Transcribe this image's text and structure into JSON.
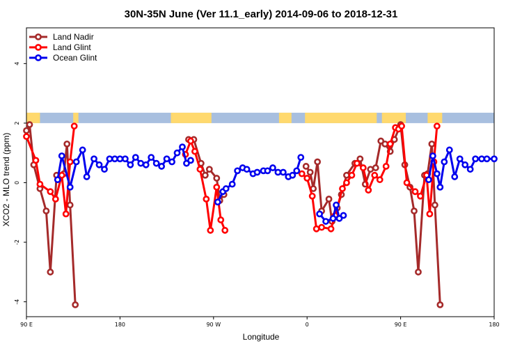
{
  "chart_data": {
    "type": "line",
    "title": "30N-35N June (Ver 11.1_early)   2014-09-06 to 2018-12-31",
    "xlabel": "Longitude",
    "ylabel": "XCO2 - MLO trend (ppm)",
    "x_ticks": [
      {
        "value": 90,
        "label": "90 E"
      },
      {
        "value": 180,
        "label": "180"
      },
      {
        "value": 270,
        "label": "90 W"
      },
      {
        "value": 360,
        "label": "0"
      },
      {
        "value": 450,
        "label": "90 E"
      },
      {
        "value": 540,
        "label": "180"
      }
    ],
    "y_ticks": [
      {
        "value": -4,
        "label": "-4"
      },
      {
        "value": -2,
        "label": "-2"
      },
      {
        "value": 0,
        "label": "0"
      },
      {
        "value": 2,
        "label": "2"
      },
      {
        "value": 4,
        "label": "4"
      }
    ],
    "xlim": [
      90,
      540
    ],
    "ylim": [
      -4.5,
      5.2
    ],
    "legend_position": "top-left",
    "land_mask_band": {
      "y_range": [
        2.0,
        2.35
      ],
      "land_color": "#ffd96e",
      "ocean_color": "#a8bfdf"
    },
    "series": [
      {
        "name": "Land Nadir",
        "color": "#a52a2a",
        "segments": [
          [
            [
              90,
              1.75
            ],
            [
              93,
              1.95
            ],
            [
              97,
              0.6
            ],
            [
              103,
              -0.2
            ],
            [
              109,
              -0.95
            ],
            [
              113,
              -3.0
            ],
            [
              119,
              0.25
            ],
            [
              126,
              0.3
            ],
            [
              129,
              1.3
            ],
            [
              132,
              -0.75
            ],
            [
              137,
              -4.1
            ]
          ],
          [
            [
              246,
              1.45
            ],
            [
              251,
              1.45
            ],
            [
              258,
              0.65
            ],
            [
              262,
              0.25
            ],
            [
              266,
              0.45
            ],
            [
              273,
              0.15
            ],
            [
              276,
              -0.6
            ],
            [
              280,
              -0.4
            ]
          ],
          [
            [
              359,
              0.55
            ],
            [
              363,
              0.35
            ],
            [
              366,
              -0.2
            ],
            [
              370,
              0.7
            ],
            [
              374,
              -0.95
            ],
            [
              381,
              -0.55
            ],
            [
              384,
              -1.3
            ],
            [
              389,
              -0.85
            ],
            [
              393,
              -0.4
            ],
            [
              398,
              0.25
            ],
            [
              406,
              0.65
            ],
            [
              411,
              0.8
            ],
            [
              416,
              -0.05
            ],
            [
              421,
              0.45
            ],
            [
              426,
              0.5
            ],
            [
              431,
              1.4
            ],
            [
              435,
              1.3
            ],
            [
              440,
              1.05
            ],
            [
              444,
              1.45
            ],
            [
              450,
              1.95
            ],
            [
              454,
              0.6
            ],
            [
              459,
              -0.15
            ],
            [
              463,
              -0.95
            ],
            [
              467,
              -3.0
            ],
            [
              473,
              0.25
            ],
            [
              476,
              0.3
            ],
            [
              480,
              1.3
            ],
            [
              483,
              -0.75
            ],
            [
              488,
              -4.1
            ]
          ]
        ]
      },
      {
        "name": "Land Glint",
        "color": "#ff0000",
        "segments": [
          [
            [
              90,
              1.55
            ],
            [
              99,
              0.75
            ],
            [
              103,
              -0.05
            ],
            [
              113,
              -0.3
            ],
            [
              118,
              -0.55
            ],
            [
              124,
              0.25
            ],
            [
              128,
              -1.05
            ],
            [
              132,
              0.7
            ],
            [
              136,
              1.9
            ]
          ],
          [
            [
              243,
              0.95
            ],
            [
              248,
              1.4
            ],
            [
              252,
              1.05
            ],
            [
              257,
              0.45
            ],
            [
              263,
              -0.55
            ],
            [
              267,
              -1.6
            ],
            [
              273,
              -0.15
            ],
            [
              277,
              -1.25
            ],
            [
              281,
              -1.6
            ]
          ],
          [
            [
              355,
              0.3
            ],
            [
              360,
              0.15
            ],
            [
              365,
              -0.45
            ],
            [
              369,
              -1.55
            ],
            [
              374,
              -1.5
            ],
            [
              383,
              -1.55
            ],
            [
              387,
              -1.1
            ],
            [
              394,
              -0.2
            ],
            [
              398,
              0.0
            ],
            [
              403,
              0.25
            ],
            [
              408,
              0.65
            ],
            [
              414,
              0.5
            ],
            [
              419,
              -0.25
            ],
            [
              425,
              0.25
            ],
            [
              430,
              0.1
            ],
            [
              436,
              0.55
            ],
            [
              440,
              1.3
            ],
            [
              445,
              1.85
            ],
            [
              448,
              1.8
            ],
            [
              451,
              1.9
            ],
            [
              456,
              0.0
            ],
            [
              464,
              -0.3
            ],
            [
              469,
              -0.45
            ],
            [
              475,
              0.25
            ],
            [
              478,
              -1.05
            ],
            [
              482,
              0.7
            ],
            [
              485,
              1.9
            ]
          ]
        ]
      },
      {
        "name": "Ocean Glint",
        "color": "#0000ee",
        "segments": [
          [
            [
              120,
              0.1
            ],
            [
              124,
              0.9
            ],
            [
              132,
              -0.15
            ],
            [
              138,
              0.7
            ],
            [
              144,
              1.1
            ],
            [
              148,
              0.2
            ],
            [
              155,
              0.8
            ],
            [
              160,
              0.6
            ],
            [
              165,
              0.45
            ],
            [
              170,
              0.8
            ],
            [
              175,
              0.8
            ],
            [
              180,
              0.8
            ],
            [
              185,
              0.8
            ],
            [
              190,
              0.6
            ],
            [
              195,
              0.85
            ],
            [
              200,
              0.65
            ],
            [
              205,
              0.6
            ],
            [
              210,
              0.85
            ],
            [
              215,
              0.65
            ],
            [
              220,
              0.55
            ],
            [
              225,
              0.8
            ],
            [
              230,
              0.7
            ],
            [
              235,
              1.0
            ],
            [
              240,
              1.2
            ],
            [
              244,
              0.65
            ],
            [
              248,
              0.75
            ]
          ],
          [
            [
              274,
              -0.65
            ],
            [
              279,
              -0.3
            ],
            [
              282,
              -0.2
            ],
            [
              288,
              -0.05
            ],
            [
              293,
              0.4
            ],
            [
              298,
              0.5
            ],
            [
              302,
              0.45
            ],
            [
              308,
              0.3
            ],
            [
              312,
              0.35
            ],
            [
              318,
              0.4
            ],
            [
              322,
              0.4
            ],
            [
              327,
              0.5
            ],
            [
              332,
              0.35
            ],
            [
              337,
              0.35
            ],
            [
              342,
              0.2
            ],
            [
              346,
              0.25
            ],
            [
              350,
              0.4
            ],
            [
              354,
              0.85
            ]
          ],
          [
            [
              372,
              -1.05
            ],
            [
              378,
              -1.3
            ],
            [
              385,
              -1.2
            ],
            [
              388,
              -0.75
            ],
            [
              391,
              -1.2
            ],
            [
              395,
              -1.1
            ]
          ],
          [
            [
              477,
              0.1
            ],
            [
              481,
              0.9
            ],
            [
              485,
              0.3
            ],
            [
              488,
              -0.15
            ],
            [
              492,
              0.7
            ],
            [
              497,
              1.1
            ],
            [
              502,
              0.2
            ],
            [
              507,
              0.8
            ],
            [
              512,
              0.6
            ],
            [
              517,
              0.45
            ],
            [
              522,
              0.8
            ],
            [
              528,
              0.8
            ],
            [
              533,
              0.8
            ],
            [
              540,
              0.8
            ]
          ]
        ]
      }
    ]
  }
}
